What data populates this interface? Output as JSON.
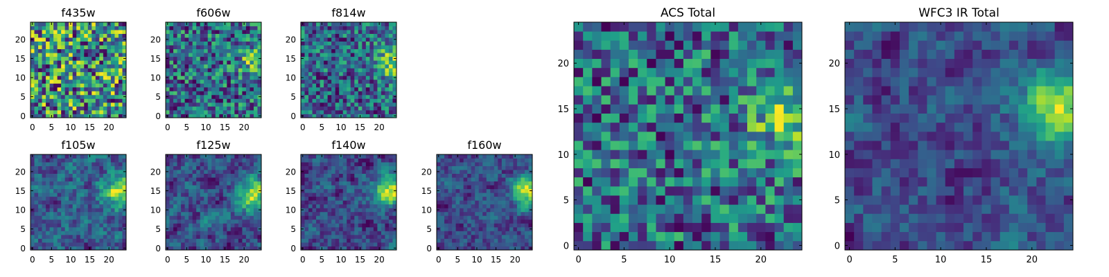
{
  "figure": {
    "panels": [
      {
        "title": "f435w",
        "xticks": [
          "0",
          "5",
          "10",
          "15",
          "20"
        ],
        "yticks": [
          "0",
          "5",
          "10",
          "15",
          "20"
        ]
      },
      {
        "title": "f606w",
        "xticks": [
          "0",
          "5",
          "10",
          "15",
          "20"
        ],
        "yticks": [
          "0",
          "5",
          "10",
          "15",
          "20"
        ]
      },
      {
        "title": "f814w",
        "xticks": [
          "0",
          "5",
          "10",
          "15",
          "20"
        ],
        "yticks": [
          "0",
          "5",
          "10",
          "15",
          "20"
        ]
      },
      {
        "title": "f105w",
        "xticks": [
          "0",
          "5",
          "10",
          "15",
          "20"
        ],
        "yticks": [
          "0",
          "5",
          "10",
          "15",
          "20"
        ]
      },
      {
        "title": "f125w",
        "xticks": [
          "0",
          "5",
          "10",
          "15",
          "20"
        ],
        "yticks": [
          "0",
          "5",
          "10",
          "15",
          "20"
        ]
      },
      {
        "title": "f140w",
        "xticks": [
          "0",
          "5",
          "10",
          "15",
          "20"
        ],
        "yticks": [
          "0",
          "5",
          "10",
          "15",
          "20"
        ]
      },
      {
        "title": "f160w",
        "xticks": [
          "0",
          "5",
          "10",
          "15",
          "20"
        ],
        "yticks": [
          "0",
          "5",
          "10",
          "15",
          "20"
        ]
      },
      {
        "title": "ACS Total",
        "xticks": [
          "0",
          "5",
          "10",
          "15",
          "20"
        ],
        "yticks": [
          "0",
          "5",
          "10",
          "15",
          "20"
        ]
      },
      {
        "title": "WFC3 IR Total",
        "xticks": [
          "0",
          "5",
          "10",
          "15",
          "20"
        ],
        "yticks": [
          "0",
          "5",
          "10",
          "15",
          "20"
        ]
      }
    ]
  },
  "chart_data": [
    {
      "type": "heatmap",
      "title": "f435w",
      "grid_size": [
        25,
        25
      ],
      "colormap": "viridis",
      "xlim": [
        -0.5,
        24.5
      ],
      "ylim": [
        -0.5,
        24.5
      ],
      "pattern": "noise",
      "hotspot": null,
      "seed": 11
    },
    {
      "type": "heatmap",
      "title": "f606w",
      "grid_size": [
        25,
        25
      ],
      "colormap": "viridis",
      "xlim": [
        -0.5,
        24.5
      ],
      "ylim": [
        -0.5,
        24.5
      ],
      "pattern": "noise-with-source",
      "hotspot": {
        "x": 23,
        "y": 14,
        "strength": 0.35
      },
      "seed": 22
    },
    {
      "type": "heatmap",
      "title": "f814w",
      "grid_size": [
        25,
        25
      ],
      "colormap": "viridis",
      "xlim": [
        -0.5,
        24.5
      ],
      "ylim": [
        -0.5,
        24.5
      ],
      "pattern": "noise-with-source",
      "hotspot": {
        "x": 23,
        "y": 14,
        "strength": 0.4
      },
      "seed": 33
    },
    {
      "type": "heatmap",
      "title": "f105w",
      "grid_size": [
        25,
        25
      ],
      "colormap": "viridis",
      "xlim": [
        -0.5,
        24.5
      ],
      "ylim": [
        -0.5,
        24.5
      ],
      "pattern": "smooth-with-source",
      "hotspot": {
        "x": 23,
        "y": 15,
        "strength": 0.75
      },
      "seed": 44
    },
    {
      "type": "heatmap",
      "title": "f125w",
      "grid_size": [
        25,
        25
      ],
      "colormap": "viridis",
      "xlim": [
        -0.5,
        24.5
      ],
      "ylim": [
        -0.5,
        24.5
      ],
      "pattern": "smooth-with-source",
      "hotspot": {
        "x": 22,
        "y": 14,
        "strength": 0.8
      },
      "seed": 55
    },
    {
      "type": "heatmap",
      "title": "f140w",
      "grid_size": [
        25,
        25
      ],
      "colormap": "viridis",
      "xlim": [
        -0.5,
        24.5
      ],
      "ylim": [
        -0.5,
        24.5
      ],
      "pattern": "smooth-with-source",
      "hotspot": {
        "x": 23,
        "y": 15,
        "strength": 0.85
      },
      "seed": 66
    },
    {
      "type": "heatmap",
      "title": "f160w",
      "grid_size": [
        25,
        25
      ],
      "colormap": "viridis",
      "xlim": [
        -0.5,
        24.5
      ],
      "ylim": [
        -0.5,
        24.5
      ],
      "pattern": "smooth-with-source",
      "hotspot": {
        "x": 23,
        "y": 15,
        "strength": 0.9
      },
      "seed": 77
    },
    {
      "type": "heatmap",
      "title": "ACS Total",
      "grid_size": [
        25,
        25
      ],
      "colormap": "viridis",
      "xlim": [
        -0.5,
        24.5
      ],
      "ylim": [
        -0.5,
        24.5
      ],
      "pattern": "noise-with-source",
      "hotspot": {
        "x": 23,
        "y": 14,
        "strength": 0.35
      },
      "seed": 88
    },
    {
      "type": "heatmap",
      "title": "WFC3 IR Total",
      "grid_size": [
        25,
        25
      ],
      "colormap": "viridis",
      "xlim": [
        -0.5,
        24.5
      ],
      "ylim": [
        -0.5,
        24.5
      ],
      "pattern": "smooth-with-source",
      "hotspot": {
        "x": 23,
        "y": 15,
        "strength": 0.95
      },
      "seed": 99
    }
  ]
}
